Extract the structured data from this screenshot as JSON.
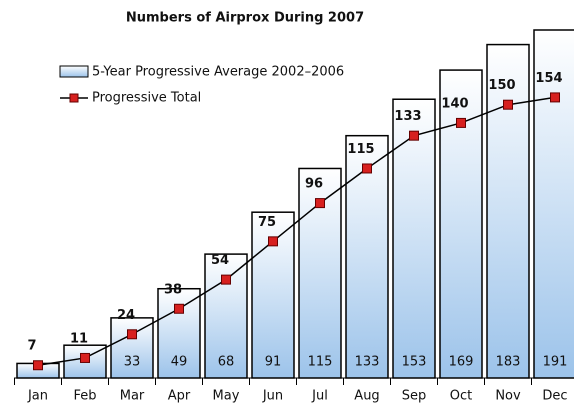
{
  "chart_data": {
    "type": "bar-line",
    "title": "Numbers of Airprox During 2007",
    "categories": [
      "Jan",
      "Feb",
      "Mar",
      "Apr",
      "May",
      "Jun",
      "Jul",
      "Aug",
      "Sep",
      "Oct",
      "Nov",
      "Dec"
    ],
    "series": [
      {
        "name": "5-Year Progressive Average 2002–2006",
        "type": "bar",
        "color": "#9cc3ea",
        "values": [
          8,
          18,
          33,
          49,
          68,
          91,
          115,
          133,
          153,
          169,
          183,
          191
        ],
        "value_labels": [
          null,
          null,
          "33",
          "49",
          "68",
          "91",
          "115",
          "133",
          "153",
          "169",
          "183",
          "191"
        ]
      },
      {
        "name": "Progressive Total",
        "type": "line",
        "color": "#d7201f",
        "values": [
          7,
          11,
          24,
          38,
          54,
          75,
          96,
          115,
          133,
          140,
          150,
          154
        ]
      }
    ]
  }
}
